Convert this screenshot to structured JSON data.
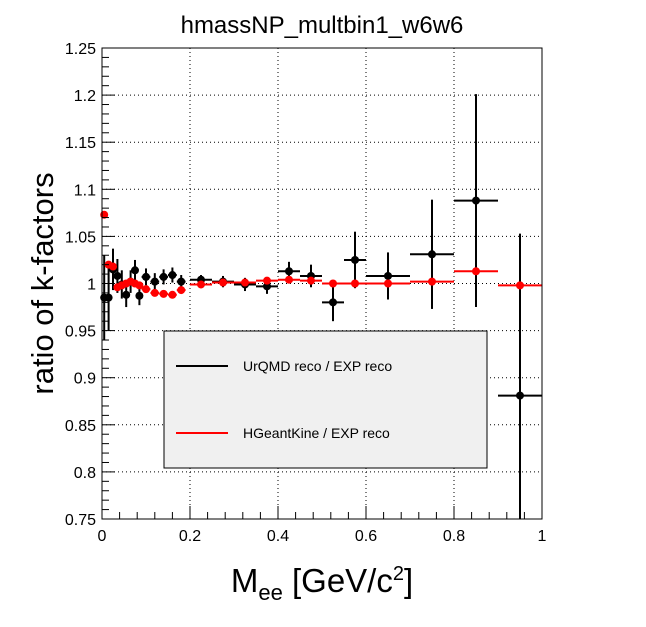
{
  "chart_data": {
    "type": "scatter",
    "title": "hmassNP_multbin1_w6w6",
    "xlabel": {
      "main": "M",
      "sub": "ee",
      "rest": " [GeV/c",
      "sup": "2",
      "close": "]"
    },
    "ylabel": "ratio of k-factors",
    "xlim": [
      0,
      1
    ],
    "ylim": [
      0.75,
      1.25
    ],
    "x_ticks": [
      {
        "value": 0,
        "label": "0"
      },
      {
        "value": 0.2,
        "label": "0.2"
      },
      {
        "value": 0.4,
        "label": "0.4"
      },
      {
        "value": 0.6,
        "label": "0.6"
      },
      {
        "value": 0.8,
        "label": "0.8"
      },
      {
        "value": 1,
        "label": "1"
      }
    ],
    "y_ticks": [
      {
        "value": 0.75,
        "label": "0.75"
      },
      {
        "value": 0.8,
        "label": "0.8"
      },
      {
        "value": 0.85,
        "label": "0.85"
      },
      {
        "value": 0.9,
        "label": "0.9"
      },
      {
        "value": 0.95,
        "label": "0.95"
      },
      {
        "value": 1,
        "label": "1"
      },
      {
        "value": 1.05,
        "label": "1.05"
      },
      {
        "value": 1.1,
        "label": "1.1"
      },
      {
        "value": 1.15,
        "label": "1.15"
      },
      {
        "value": 1.2,
        "label": "1.2"
      },
      {
        "value": 1.25,
        "label": "1.25"
      }
    ],
    "grid": true,
    "legend_position": "center",
    "series": [
      {
        "name": "UrQMD reco / EXP reco",
        "color": "#000000",
        "points": [
          {
            "x": 0.005,
            "y": 0.985,
            "xerr": 0.005,
            "yerr": 0.045
          },
          {
            "x": 0.015,
            "y": 0.985,
            "xerr": 0.005,
            "yerr": 0.035
          },
          {
            "x": 0.025,
            "y": 1.015,
            "xerr": 0.005,
            "yerr": 0.022
          },
          {
            "x": 0.035,
            "y": 1.008,
            "xerr": 0.005,
            "yerr": 0.018
          },
          {
            "x": 0.045,
            "y": 0.999,
            "xerr": 0.005,
            "yerr": 0.015
          },
          {
            "x": 0.055,
            "y": 0.988,
            "xerr": 0.005,
            "yerr": 0.013
          },
          {
            "x": 0.065,
            "y": 1.002,
            "xerr": 0.005,
            "yerr": 0.012
          },
          {
            "x": 0.075,
            "y": 1.014,
            "xerr": 0.005,
            "yerr": 0.011
          },
          {
            "x": 0.085,
            "y": 0.987,
            "xerr": 0.005,
            "yerr": 0.01
          },
          {
            "x": 0.1,
            "y": 1.007,
            "xerr": 0.01,
            "yerr": 0.009
          },
          {
            "x": 0.12,
            "y": 1.002,
            "xerr": 0.01,
            "yerr": 0.009
          },
          {
            "x": 0.14,
            "y": 1.007,
            "xerr": 0.01,
            "yerr": 0.008
          },
          {
            "x": 0.16,
            "y": 1.009,
            "xerr": 0.01,
            "yerr": 0.008
          },
          {
            "x": 0.18,
            "y": 1.002,
            "xerr": 0.01,
            "yerr": 0.007
          },
          {
            "x": 0.225,
            "y": 1.004,
            "xerr": 0.025,
            "yerr": 0.005
          },
          {
            "x": 0.275,
            "y": 1.002,
            "xerr": 0.025,
            "yerr": 0.006
          },
          {
            "x": 0.325,
            "y": 0.999,
            "xerr": 0.025,
            "yerr": 0.007
          },
          {
            "x": 0.375,
            "y": 0.997,
            "xerr": 0.025,
            "yerr": 0.008
          },
          {
            "x": 0.425,
            "y": 1.013,
            "xerr": 0.025,
            "yerr": 0.01
          },
          {
            "x": 0.475,
            "y": 1.008,
            "xerr": 0.025,
            "yerr": 0.012
          },
          {
            "x": 0.525,
            "y": 0.98,
            "xerr": 0.025,
            "yerr": 0.02
          },
          {
            "x": 0.575,
            "y": 1.025,
            "xerr": 0.025,
            "yerr": 0.03
          },
          {
            "x": 0.65,
            "y": 1.008,
            "xerr": 0.05,
            "yerr": 0.025
          },
          {
            "x": 0.75,
            "y": 1.031,
            "xerr": 0.05,
            "yerr": 0.058
          },
          {
            "x": 0.85,
            "y": 1.088,
            "xerr": 0.05,
            "yerr": 0.113
          },
          {
            "x": 0.95,
            "y": 0.881,
            "xerr": 0.05,
            "yerr": 0.172
          }
        ]
      },
      {
        "name": "HGeantKine / EXP reco",
        "color": "#ff0000",
        "points": [
          {
            "x": 0.005,
            "y": 1.073,
            "xerr": 0.005,
            "yerr": 0.002
          },
          {
            "x": 0.015,
            "y": 1.02,
            "xerr": 0.005,
            "yerr": 0.002
          },
          {
            "x": 0.025,
            "y": 1.018,
            "xerr": 0.005,
            "yerr": 0.002
          },
          {
            "x": 0.035,
            "y": 0.996,
            "xerr": 0.005,
            "yerr": 0.002
          },
          {
            "x": 0.045,
            "y": 0.998,
            "xerr": 0.005,
            "yerr": 0.002
          },
          {
            "x": 0.055,
            "y": 1.0,
            "xerr": 0.005,
            "yerr": 0.002
          },
          {
            "x": 0.065,
            "y": 1.002,
            "xerr": 0.005,
            "yerr": 0.002
          },
          {
            "x": 0.075,
            "y": 1.0,
            "xerr": 0.005,
            "yerr": 0.002
          },
          {
            "x": 0.085,
            "y": 0.998,
            "xerr": 0.005,
            "yerr": 0.002
          },
          {
            "x": 0.1,
            "y": 0.994,
            "xerr": 0.01,
            "yerr": 0.002
          },
          {
            "x": 0.12,
            "y": 0.99,
            "xerr": 0.01,
            "yerr": 0.002
          },
          {
            "x": 0.14,
            "y": 0.989,
            "xerr": 0.01,
            "yerr": 0.002
          },
          {
            "x": 0.16,
            "y": 0.988,
            "xerr": 0.01,
            "yerr": 0.002
          },
          {
            "x": 0.18,
            "y": 0.993,
            "xerr": 0.01,
            "yerr": 0.002
          },
          {
            "x": 0.225,
            "y": 0.999,
            "xerr": 0.025,
            "yerr": 0.002
          },
          {
            "x": 0.275,
            "y": 1.001,
            "xerr": 0.025,
            "yerr": 0.002
          },
          {
            "x": 0.325,
            "y": 1.001,
            "xerr": 0.025,
            "yerr": 0.002
          },
          {
            "x": 0.375,
            "y": 1.003,
            "xerr": 0.025,
            "yerr": 0.002
          },
          {
            "x": 0.425,
            "y": 1.004,
            "xerr": 0.025,
            "yerr": 0.002
          },
          {
            "x": 0.475,
            "y": 1.003,
            "xerr": 0.025,
            "yerr": 0.002
          },
          {
            "x": 0.525,
            "y": 1.0,
            "xerr": 0.025,
            "yerr": 0.002
          },
          {
            "x": 0.575,
            "y": 1.0,
            "xerr": 0.025,
            "yerr": 0.002
          },
          {
            "x": 0.65,
            "y": 1.0,
            "xerr": 0.05,
            "yerr": 0.002
          },
          {
            "x": 0.75,
            "y": 1.002,
            "xerr": 0.05,
            "yerr": 0.002
          },
          {
            "x": 0.85,
            "y": 1.013,
            "xerr": 0.05,
            "yerr": 0.003
          },
          {
            "x": 0.95,
            "y": 0.998,
            "xerr": 0.05,
            "yerr": 0.004
          }
        ]
      }
    ]
  }
}
